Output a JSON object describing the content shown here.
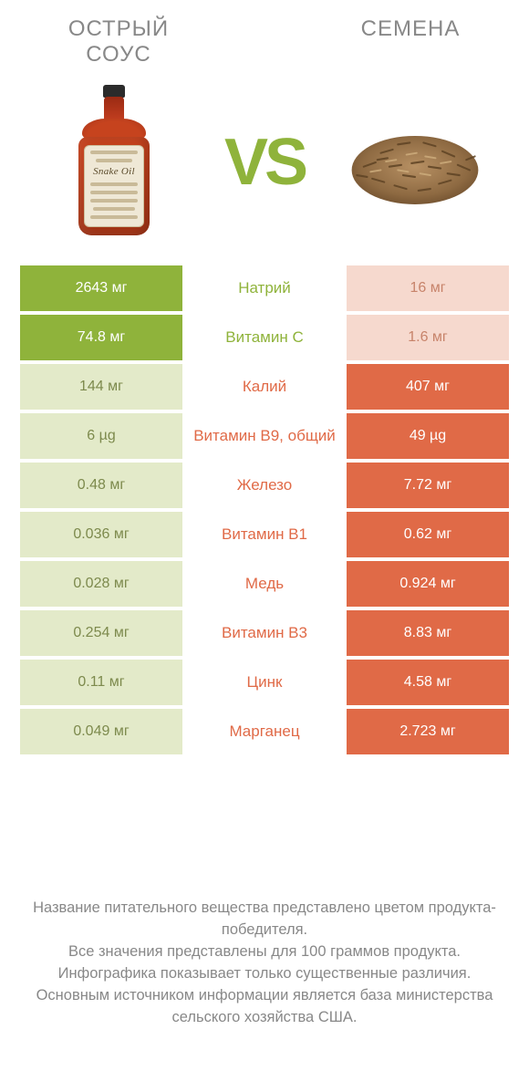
{
  "colors": {
    "left": "#8fb33b",
    "right": "#e06a47",
    "left_muted": "#e3eac9",
    "right_muted": "#f6d9ce",
    "text_muted": "#888888",
    "white": "#ffffff",
    "bg": "#ffffff"
  },
  "header": {
    "left_title": "ОСТРЫЙ СОУС",
    "right_title": "СЕМЕНА",
    "vs": "VS",
    "bottle_label": "Snake Oil"
  },
  "rows": [
    {
      "nutrient": "Натрий",
      "left": "2643 мг",
      "right": "16 мг",
      "winner": "left"
    },
    {
      "nutrient": "Витамин C",
      "left": "74.8 мг",
      "right": "1.6 мг",
      "winner": "left"
    },
    {
      "nutrient": "Калий",
      "left": "144 мг",
      "right": "407 мг",
      "winner": "right"
    },
    {
      "nutrient": "Витамин B9, общий",
      "left": "6 µg",
      "right": "49 µg",
      "winner": "right"
    },
    {
      "nutrient": "Железо",
      "left": "0.48 мг",
      "right": "7.72 мг",
      "winner": "right"
    },
    {
      "nutrient": "Витамин B1",
      "left": "0.036 мг",
      "right": "0.62 мг",
      "winner": "right"
    },
    {
      "nutrient": "Медь",
      "left": "0.028 мг",
      "right": "0.924 мг",
      "winner": "right"
    },
    {
      "nutrient": "Витамин B3",
      "left": "0.254 мг",
      "right": "8.83 мг",
      "winner": "right"
    },
    {
      "nutrient": "Цинк",
      "left": "0.11 мг",
      "right": "4.58 мг",
      "winner": "right"
    },
    {
      "nutrient": "Марганец",
      "left": "0.049 мг",
      "right": "2.723 мг",
      "winner": "right"
    }
  ],
  "footer": {
    "l1": "Название питательного вещества представлено цветом продукта-победителя.",
    "l2": "Все значения представлены для 100 граммов продукта.",
    "l3": "Инфографика показывает только существенные различия.",
    "l4": "Основным источником информации является база министерства сельского хозяйства США."
  }
}
